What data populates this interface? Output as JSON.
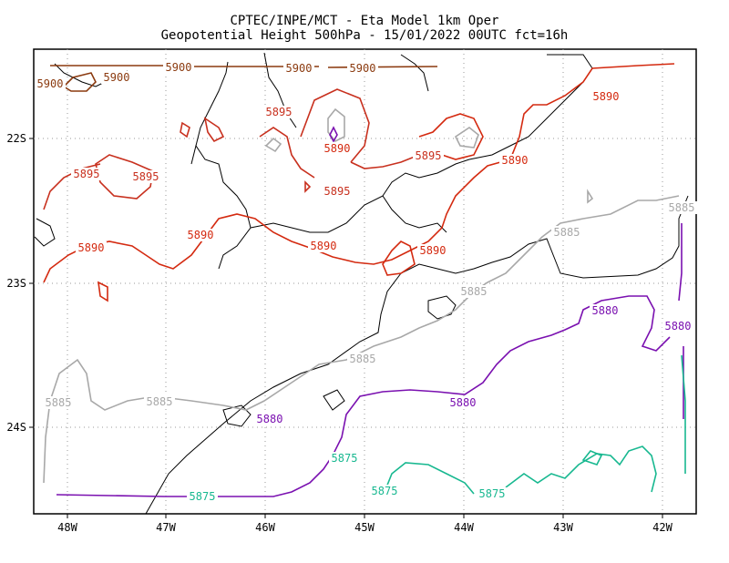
{
  "title": {
    "line1": "CPTEC/INPE/MCT -  Eta Model 1km Oper",
    "line2": "Geopotential Height 500hPa - 15/01/2022 00UTC fct=16h"
  },
  "axes": {
    "x_ticks": [
      "48W",
      "47W",
      "46W",
      "45W",
      "44W",
      "43W",
      "42W"
    ],
    "y_ticks": [
      "22S",
      "23S",
      "24S"
    ]
  },
  "colors": {
    "5900": "#8b3a0f",
    "5895": "#c8301e",
    "5890": "#d42a10",
    "5885": "#a8a8a8",
    "5880": "#7a10b0",
    "5875": "#18b890",
    "coastline": "#000000"
  },
  "contour_labels": [
    {
      "text": "5900",
      "color_key": "5900"
    },
    {
      "text": "5900",
      "color_key": "5900"
    },
    {
      "text": "5900",
      "color_key": "5900"
    },
    {
      "text": "5900",
      "color_key": "5900"
    },
    {
      "text": "5900",
      "color_key": "5900"
    },
    {
      "text": "5895",
      "color_key": "5895"
    },
    {
      "text": "5895",
      "color_key": "5895"
    },
    {
      "text": "5895",
      "color_key": "5895"
    },
    {
      "text": "5895",
      "color_key": "5895"
    },
    {
      "text": "5895",
      "color_key": "5895"
    },
    {
      "text": "5890",
      "color_key": "5890"
    },
    {
      "text": "5890",
      "color_key": "5890"
    },
    {
      "text": "5890",
      "color_key": "5890"
    },
    {
      "text": "5890",
      "color_key": "5890"
    },
    {
      "text": "5890",
      "color_key": "5890"
    },
    {
      "text": "5890",
      "color_key": "5890"
    },
    {
      "text": "5890",
      "color_key": "5890"
    },
    {
      "text": "5885",
      "color_key": "5885"
    },
    {
      "text": "5885",
      "color_key": "5885"
    },
    {
      "text": "5885",
      "color_key": "5885"
    },
    {
      "text": "5885",
      "color_key": "5885"
    },
    {
      "text": "5885",
      "color_key": "5885"
    },
    {
      "text": "5885",
      "color_key": "5885"
    },
    {
      "text": "5880",
      "color_key": "5880"
    },
    {
      "text": "5880",
      "color_key": "5880"
    },
    {
      "text": "5880",
      "color_key": "5880"
    },
    {
      "text": "5880",
      "color_key": "5880"
    },
    {
      "text": "5875",
      "color_key": "5875"
    },
    {
      "text": "5875",
      "color_key": "5875"
    },
    {
      "text": "5875",
      "color_key": "5875"
    },
    {
      "text": "5875",
      "color_key": "5875"
    }
  ]
}
